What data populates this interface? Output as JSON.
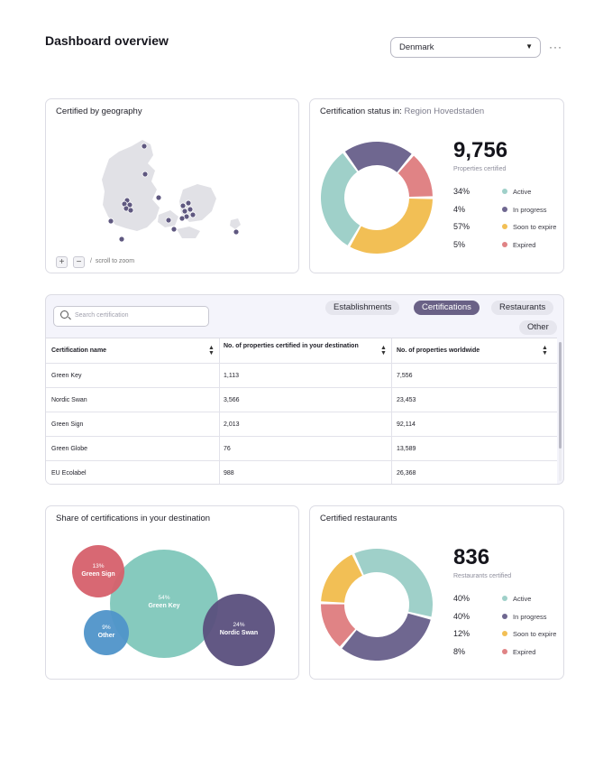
{
  "header": {
    "title": "Dashboard overview",
    "country_select": "Denmark",
    "more_icon": "more-horizontal-icon"
  },
  "map_card": {
    "title": "Certified by geography",
    "zoom_in": "+",
    "zoom_out": "−",
    "separator": "/",
    "zoom_hint": "scroll to zoom"
  },
  "status_card": {
    "title_prefix": "Certification status in:",
    "region": "Region Hovedstaden",
    "total": "9,756",
    "total_label": "Properties certified",
    "legend": [
      {
        "pct": "34%",
        "label": "Active",
        "color": "#9fd0c9"
      },
      {
        "pct": "4%",
        "label": "In progress",
        "color": "#6f6790"
      },
      {
        "pct": "57%",
        "label": "Soon to expire",
        "color": "#f2bf55"
      },
      {
        "pct": "5%",
        "label": "Expired",
        "color": "#e08385"
      }
    ]
  },
  "table_card": {
    "search_placeholder": "Search certification",
    "tabs": [
      "Establishments",
      "Certifications",
      "Restaurants",
      "Other"
    ],
    "active_tab": "Certifications",
    "columns": [
      "Certification name",
      "No. of properties certified in your destination",
      "No. of properties worldwide"
    ],
    "rows": [
      {
        "name": "Green Key",
        "destination": "1,113",
        "worldwide": "7,556"
      },
      {
        "name": "Nordic Swan",
        "destination": "3,566",
        "worldwide": "23,453"
      },
      {
        "name": "Green Sign",
        "destination": "2,013",
        "worldwide": "92,114"
      },
      {
        "name": "Green Globe",
        "destination": "76",
        "worldwide": "13,589"
      },
      {
        "name": "EU Ecolabel",
        "destination": "988",
        "worldwide": "26,368"
      }
    ]
  },
  "share_card": {
    "title": "Share of certifications in your destination",
    "bubbles": [
      {
        "pct": "13%",
        "name": "Green Sign",
        "color": "#d6606b"
      },
      {
        "pct": "54%",
        "name": "Green Key",
        "color": "#7fc7bb"
      },
      {
        "pct": "9%",
        "name": "Other",
        "color": "#4f93c9"
      },
      {
        "pct": "24%",
        "name": "Nordic Swan",
        "color": "#5a4f7d"
      }
    ]
  },
  "restaurants_card": {
    "title": "Certified restaurants",
    "total": "836",
    "total_label": "Restaurants certified",
    "legend": [
      {
        "pct": "40%",
        "label": "Active",
        "color": "#9fd0c9"
      },
      {
        "pct": "40%",
        "label": "In progress",
        "color": "#6f6790"
      },
      {
        "pct": "12%",
        "label": "Soon to expire",
        "color": "#f2bf55"
      },
      {
        "pct": "8%",
        "label": "Expired",
        "color": "#e08385"
      }
    ]
  }
}
